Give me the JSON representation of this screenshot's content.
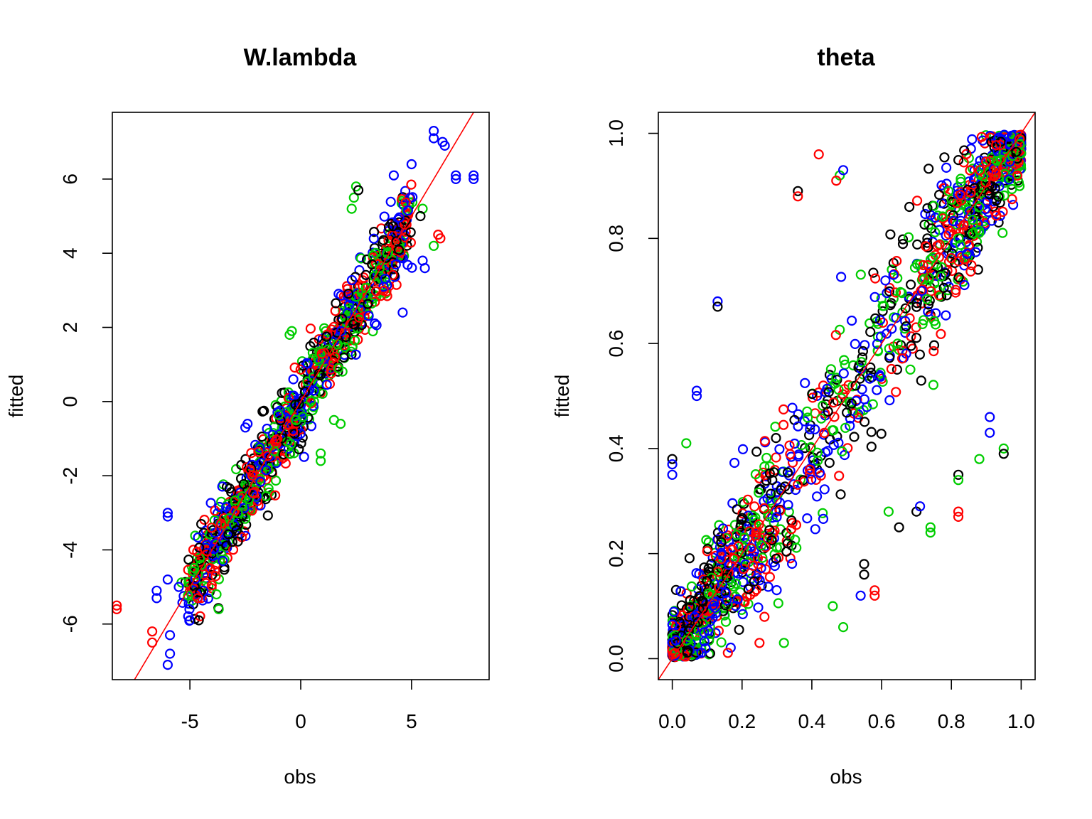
{
  "chart_data": [
    {
      "type": "scatter",
      "title": "W.lambda",
      "xlabel": "obs",
      "ylabel": "fitted",
      "xlim": [
        -8.5,
        8.5
      ],
      "ylim": [
        -7.5,
        7.8
      ],
      "xticks": [
        -5,
        0,
        5
      ],
      "xtick_labels": [
        "-5",
        "0",
        "5"
      ],
      "yticks": [
        -6,
        -4,
        -2,
        0,
        2,
        4,
        6
      ],
      "ytick_labels": [
        "-6",
        "-4",
        "-2",
        "0",
        "2",
        "4",
        "6"
      ],
      "reference_line": {
        "slope": 1,
        "intercept": 0,
        "color": "#ff0000"
      },
      "series_colors": [
        "#000000",
        "#ff0000",
        "#00cd00",
        "#0000ff"
      ],
      "grid": false,
      "legend": "none",
      "main_cloud": {
        "x_range": [
          -5,
          5
        ],
        "note_slope": 1,
        "spread": 0.55,
        "n_per_series": 260
      },
      "outliers": [
        {
          "x": 6.0,
          "y": 7.3,
          "color": "#0000ff"
        },
        {
          "x": 6.0,
          "y": 7.1,
          "color": "#0000ff"
        },
        {
          "x": 6.4,
          "y": 7.0,
          "color": "#0000ff"
        },
        {
          "x": 6.5,
          "y": 6.9,
          "color": "#0000ff"
        },
        {
          "x": 7.0,
          "y": 6.1,
          "color": "#0000ff"
        },
        {
          "x": 7.8,
          "y": 6.1,
          "color": "#0000ff"
        },
        {
          "x": 7.8,
          "y": 6.0,
          "color": "#0000ff"
        },
        {
          "x": 7.0,
          "y": 6.0,
          "color": "#0000ff"
        },
        {
          "x": 5.0,
          "y": 6.4,
          "color": "#0000ff"
        },
        {
          "x": 4.2,
          "y": 6.1,
          "color": "#0000ff"
        },
        {
          "x": 2.5,
          "y": 5.8,
          "color": "#00cd00"
        },
        {
          "x": 2.4,
          "y": 5.5,
          "color": "#00cd00"
        },
        {
          "x": 2.3,
          "y": 5.2,
          "color": "#00cd00"
        },
        {
          "x": 2.6,
          "y": 5.7,
          "color": "#000000"
        },
        {
          "x": 5.5,
          "y": 5.2,
          "color": "#00cd00"
        },
        {
          "x": 5.4,
          "y": 5.0,
          "color": "#000000"
        },
        {
          "x": 6.2,
          "y": 4.5,
          "color": "#ff0000"
        },
        {
          "x": 6.3,
          "y": 4.4,
          "color": "#ff0000"
        },
        {
          "x": 6.0,
          "y": 4.2,
          "color": "#00cd00"
        },
        {
          "x": 5.5,
          "y": 3.8,
          "color": "#0000ff"
        },
        {
          "x": 5.6,
          "y": 3.6,
          "color": "#0000ff"
        },
        {
          "x": 4.6,
          "y": 2.4,
          "color": "#0000ff"
        },
        {
          "x": 1.7,
          "y": 0.9,
          "color": "#00cd00"
        },
        {
          "x": 1.5,
          "y": -0.5,
          "color": "#00cd00"
        },
        {
          "x": 1.8,
          "y": -0.6,
          "color": "#00cd00"
        },
        {
          "x": 0.9,
          "y": -1.4,
          "color": "#00cd00"
        },
        {
          "x": 0.9,
          "y": -1.6,
          "color": "#00cd00"
        },
        {
          "x": -0.4,
          "y": 1.9,
          "color": "#00cd00"
        },
        {
          "x": -0.5,
          "y": 1.8,
          "color": "#00cd00"
        },
        {
          "x": -2.4,
          "y": -0.6,
          "color": "#0000ff"
        },
        {
          "x": -2.5,
          "y": -0.7,
          "color": "#0000ff"
        },
        {
          "x": -6.0,
          "y": -3.0,
          "color": "#0000ff"
        },
        {
          "x": -6.0,
          "y": -3.1,
          "color": "#0000ff"
        },
        {
          "x": -8.3,
          "y": -5.5,
          "color": "#ff0000"
        },
        {
          "x": -8.3,
          "y": -5.6,
          "color": "#ff0000"
        },
        {
          "x": -6.7,
          "y": -6.2,
          "color": "#ff0000"
        },
        {
          "x": -6.7,
          "y": -6.5,
          "color": "#ff0000"
        },
        {
          "x": -5.9,
          "y": -6.3,
          "color": "#0000ff"
        },
        {
          "x": -5.9,
          "y": -6.8,
          "color": "#0000ff"
        },
        {
          "x": -6.0,
          "y": -7.1,
          "color": "#0000ff"
        },
        {
          "x": -6.5,
          "y": -5.1,
          "color": "#0000ff"
        },
        {
          "x": -6.5,
          "y": -5.3,
          "color": "#0000ff"
        },
        {
          "x": -6.0,
          "y": -4.8,
          "color": "#0000ff"
        },
        {
          "x": -5.5,
          "y": -5.0,
          "color": "#0000ff"
        },
        {
          "x": -5.0,
          "y": -5.9,
          "color": "#0000ff"
        },
        {
          "x": -4.6,
          "y": -5.9,
          "color": "#000000"
        },
        {
          "x": -3.7,
          "y": -5.6,
          "color": "#00cd00"
        },
        {
          "x": -3.8,
          "y": -5.2,
          "color": "#00cd00"
        }
      ]
    },
    {
      "type": "scatter",
      "title": "theta",
      "xlabel": "obs",
      "ylabel": "fitted",
      "xlim": [
        -0.04,
        1.04
      ],
      "ylim": [
        -0.04,
        1.04
      ],
      "xticks": [
        0,
        0.2,
        0.4,
        0.6,
        0.8,
        1.0
      ],
      "xtick_labels": [
        "0.0",
        "0.2",
        "0.4",
        "0.6",
        "0.8",
        "1.0"
      ],
      "yticks": [
        0,
        0.2,
        0.4,
        0.6,
        0.8,
        1.0
      ],
      "ytick_labels": [
        "0.0",
        "0.2",
        "0.4",
        "0.6",
        "0.8",
        "1.0"
      ],
      "reference_line": {
        "slope": 1,
        "intercept": 0,
        "color": "#ff0000"
      },
      "series_colors": [
        "#000000",
        "#ff0000",
        "#00cd00",
        "#0000ff"
      ],
      "grid": false,
      "legend": "none",
      "main_cloud": {
        "x_range": [
          0,
          1
        ],
        "spread": 0.12,
        "n_per_series": 380
      },
      "outliers": [
        {
          "x": 0.42,
          "y": 0.96,
          "color": "#ff0000"
        },
        {
          "x": 0.48,
          "y": 0.92,
          "color": "#00cd00"
        },
        {
          "x": 0.49,
          "y": 0.93,
          "color": "#0000ff"
        },
        {
          "x": 0.47,
          "y": 0.91,
          "color": "#ff0000"
        },
        {
          "x": 0.36,
          "y": 0.89,
          "color": "#000000"
        },
        {
          "x": 0.36,
          "y": 0.88,
          "color": "#ff0000"
        },
        {
          "x": 0.13,
          "y": 0.68,
          "color": "#0000ff"
        },
        {
          "x": 0.13,
          "y": 0.67,
          "color": "#000000"
        },
        {
          "x": 0.07,
          "y": 0.51,
          "color": "#0000ff"
        },
        {
          "x": 0.07,
          "y": 0.5,
          "color": "#0000ff"
        },
        {
          "x": 0.0,
          "y": 0.38,
          "color": "#000000"
        },
        {
          "x": 0.0,
          "y": 0.37,
          "color": "#0000ff"
        },
        {
          "x": 0.0,
          "y": 0.35,
          "color": "#0000ff"
        },
        {
          "x": 0.04,
          "y": 0.41,
          "color": "#00cd00"
        },
        {
          "x": 0.95,
          "y": 0.4,
          "color": "#00cd00"
        },
        {
          "x": 0.95,
          "y": 0.39,
          "color": "#000000"
        },
        {
          "x": 0.91,
          "y": 0.46,
          "color": "#0000ff"
        },
        {
          "x": 0.91,
          "y": 0.43,
          "color": "#0000ff"
        },
        {
          "x": 0.88,
          "y": 0.38,
          "color": "#00cd00"
        },
        {
          "x": 0.82,
          "y": 0.35,
          "color": "#000000"
        },
        {
          "x": 0.82,
          "y": 0.34,
          "color": "#00cd00"
        },
        {
          "x": 0.82,
          "y": 0.28,
          "color": "#ff0000"
        },
        {
          "x": 0.82,
          "y": 0.27,
          "color": "#ff0000"
        },
        {
          "x": 0.74,
          "y": 0.24,
          "color": "#00cd00"
        },
        {
          "x": 0.74,
          "y": 0.25,
          "color": "#00cd00"
        },
        {
          "x": 0.7,
          "y": 0.28,
          "color": "#000000"
        },
        {
          "x": 0.71,
          "y": 0.29,
          "color": "#0000ff"
        },
        {
          "x": 0.65,
          "y": 0.25,
          "color": "#000000"
        },
        {
          "x": 0.62,
          "y": 0.28,
          "color": "#00cd00"
        },
        {
          "x": 0.58,
          "y": 0.13,
          "color": "#ff0000"
        },
        {
          "x": 0.58,
          "y": 0.12,
          "color": "#ff0000"
        },
        {
          "x": 0.54,
          "y": 0.12,
          "color": "#0000ff"
        },
        {
          "x": 0.55,
          "y": 0.16,
          "color": "#000000"
        },
        {
          "x": 0.55,
          "y": 0.18,
          "color": "#000000"
        },
        {
          "x": 0.49,
          "y": 0.06,
          "color": "#00cd00"
        },
        {
          "x": 0.46,
          "y": 0.1,
          "color": "#00cd00"
        },
        {
          "x": 0.32,
          "y": 0.03,
          "color": "#00cd00"
        },
        {
          "x": 0.25,
          "y": 0.03,
          "color": "#ff0000"
        }
      ]
    }
  ]
}
